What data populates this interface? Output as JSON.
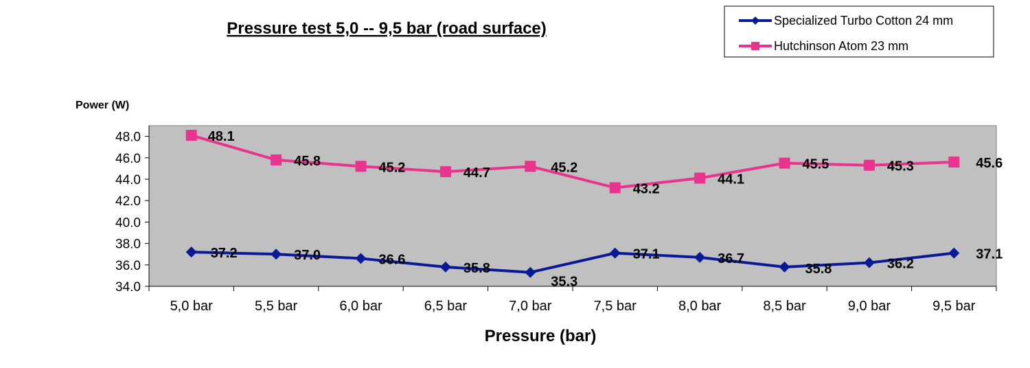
{
  "chart_data": {
    "type": "line",
    "title": "Pressure test  5,0 --  9,5 bar (road surface)",
    "ylabel": "Power (W)",
    "xlabel": "Pressure (bar)",
    "categories": [
      "5,0 bar",
      "5,5 bar",
      "6,0 bar",
      "6,5 bar",
      "7,0 bar",
      "7,5 bar",
      "8,0 bar",
      "8,5 bar",
      "9,0 bar",
      "9,5 bar"
    ],
    "ylim": [
      34.0,
      49.0
    ],
    "yticks": [
      34.0,
      36.0,
      38.0,
      40.0,
      42.0,
      44.0,
      46.0,
      48.0
    ],
    "ytick_labels": [
      "34.0",
      "36.0",
      "38.0",
      "40.0",
      "42.0",
      "44.0",
      "46.0",
      "48.0"
    ],
    "plot_background": "#c0c0c0",
    "legend_position": "top-right",
    "series": [
      {
        "name": "Specialized Turbo Cotton 24 mm",
        "color": "#0a1a96",
        "marker": "diamond",
        "values": [
          37.2,
          37.0,
          36.6,
          35.8,
          35.3,
          37.1,
          36.7,
          35.8,
          36.2,
          37.1
        ],
        "labels": [
          "37.2",
          "37.0",
          "36.6",
          "35.8",
          "35.3",
          "37.1",
          "36.7",
          "35.8",
          "36.2",
          "37.1"
        ]
      },
      {
        "name": "Hutchinson Atom 23 mm",
        "color": "#e8338f",
        "marker": "square",
        "values": [
          48.1,
          45.8,
          45.2,
          44.7,
          45.2,
          43.2,
          44.1,
          45.5,
          45.3,
          45.6
        ],
        "labels": [
          "48.1",
          "45.8",
          "45.2",
          "44.7",
          "45.2",
          "43.2",
          "44.1",
          "45.5",
          "45.3",
          "45.6"
        ]
      }
    ]
  }
}
